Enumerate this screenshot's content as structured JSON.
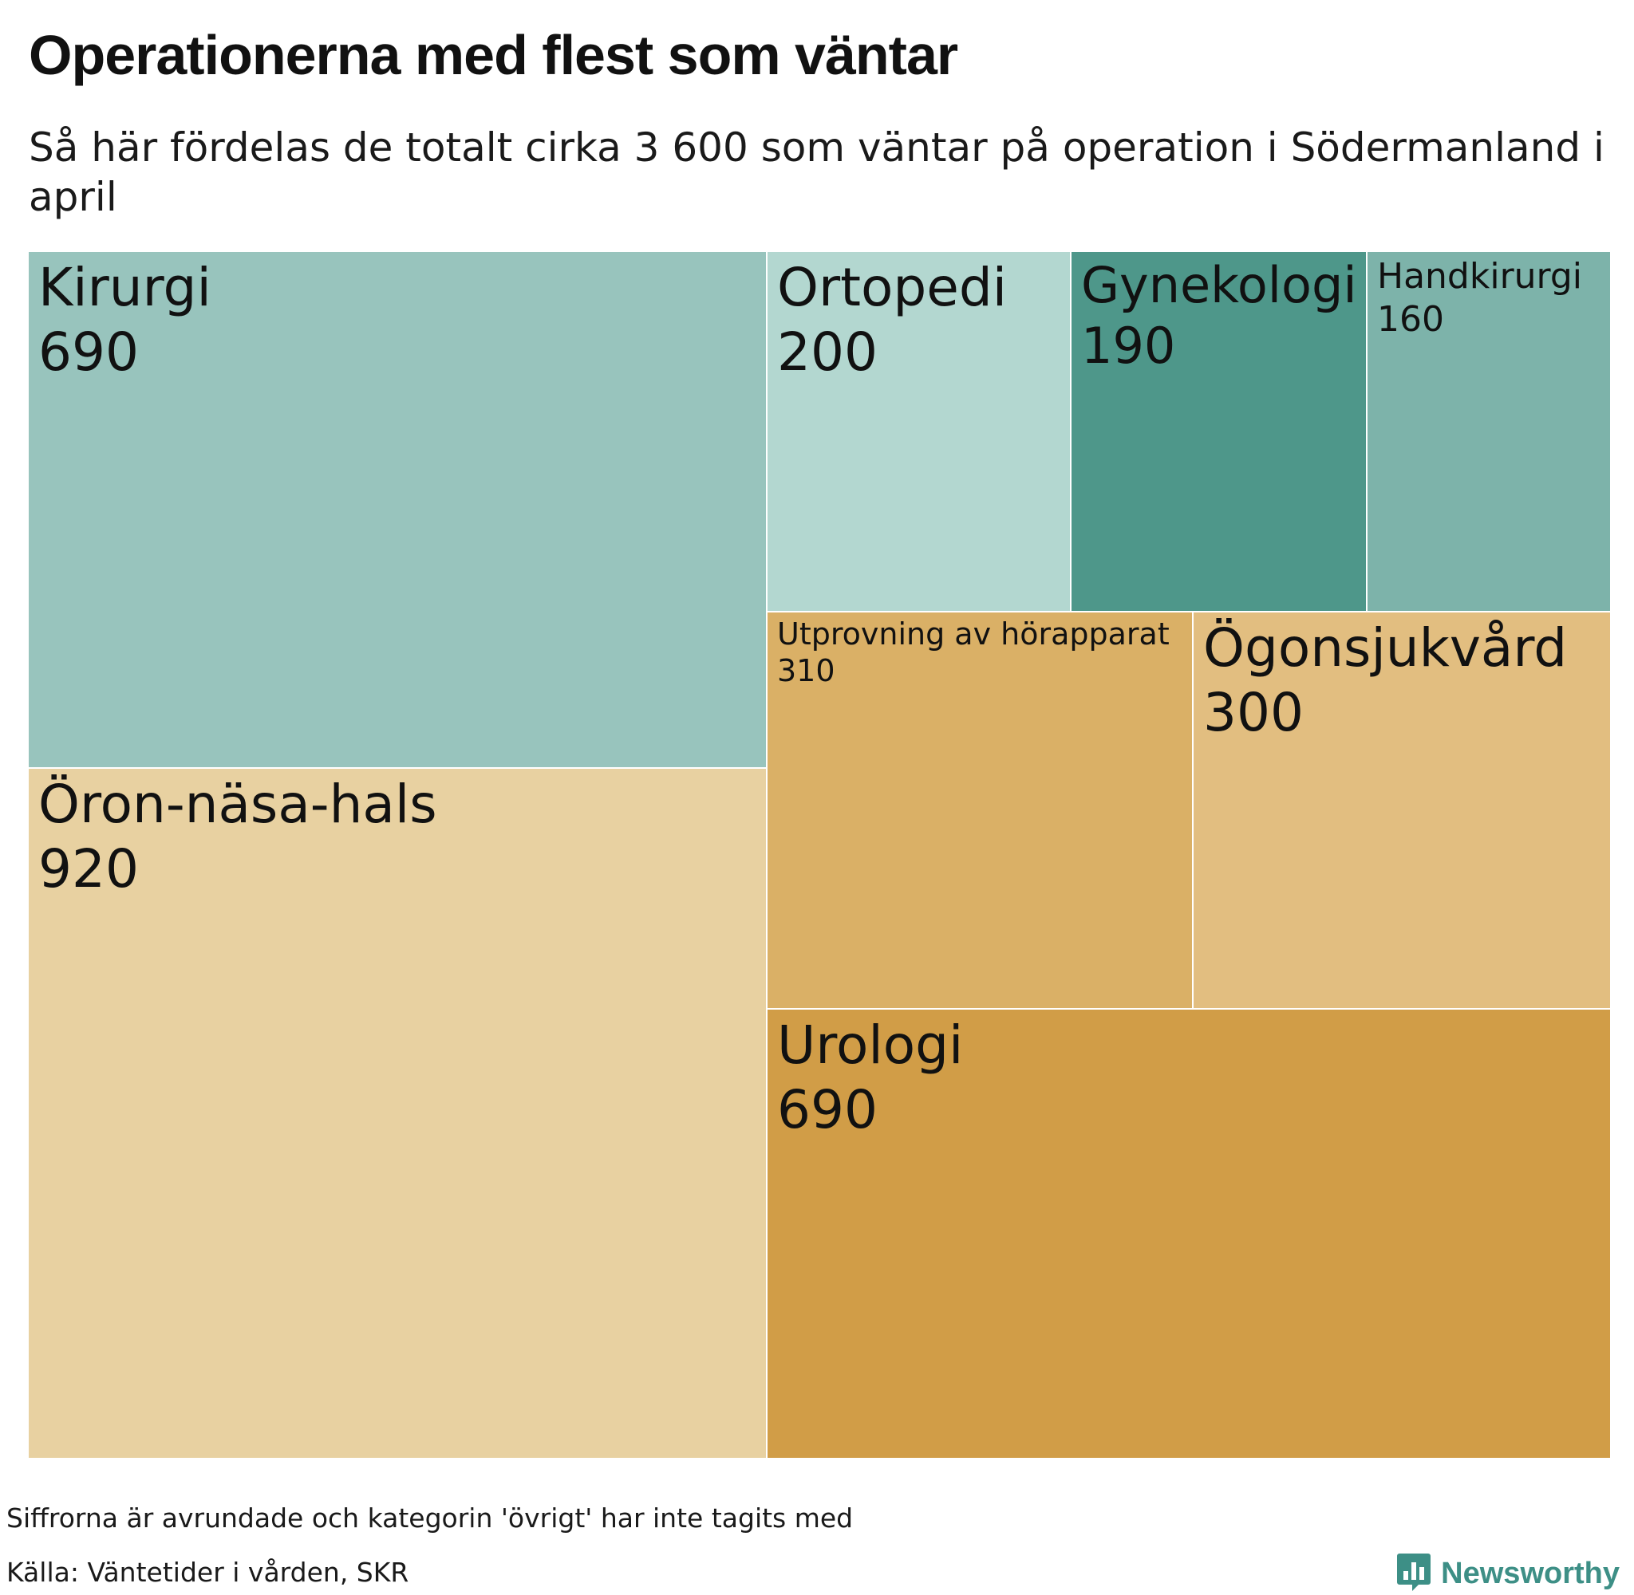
{
  "header": {
    "title": "Operationerna med flest som väntar",
    "subtitle": "Så här fördelas de totalt cirka 3 600 som väntar på operation i Södermanland i april"
  },
  "chart_data": {
    "type": "treemap",
    "title": "Operationerna med flest som väntar",
    "subtitle": "Så här fördelas de totalt cirka 3 600 som väntar på operation i Södermanland i april",
    "unit": "antal väntande",
    "items": [
      {
        "name": "Kirurgi",
        "value": 690,
        "value_label": "690",
        "color": "#98c4bd"
      },
      {
        "name": "Öron-näsa-hals",
        "value": 920,
        "value_label": "920",
        "color": "#e8d1a1"
      },
      {
        "name": "Ortopedi",
        "value": 200,
        "value_label": "200",
        "color": "#b3d7d0"
      },
      {
        "name": "Gynekologi",
        "value": 190,
        "value_label": "190",
        "color": "#4e978a"
      },
      {
        "name": "Handkirurgi",
        "value": 160,
        "value_label": "160",
        "color": "#7db3aa"
      },
      {
        "name": "Utprovning av hörapparat",
        "value": 310,
        "value_label": "310",
        "color": "#dab066"
      },
      {
        "name": "Ögonsjukvård",
        "value": 300,
        "value_label": "300",
        "color": "#e2be80"
      },
      {
        "name": "Urologi",
        "value": 690,
        "value_label": "690",
        "color": "#d19d47"
      }
    ]
  },
  "footer": {
    "note": "Siffrorna är avrundade och kategorin 'övrigt' har inte tagits med",
    "source": "Källa: Väntetider i vården, SKR",
    "brand": "Newsworthy",
    "brand_icon": "newsworthy-chart-bubble-icon",
    "brand_color": "#3d8f86"
  }
}
